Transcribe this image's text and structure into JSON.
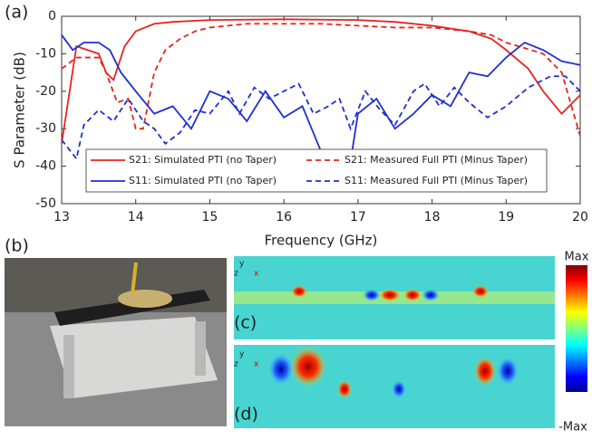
{
  "chart_data": {
    "type": "line",
    "panel_label": "(a)",
    "xlabel": "Frequency (GHz)",
    "ylabel": "S Parameter (dB)",
    "xlim": [
      13,
      20
    ],
    "ylim": [
      -50,
      0
    ],
    "xticks": [
      13,
      14,
      15,
      16,
      17,
      18,
      19,
      20
    ],
    "yticks": [
      0,
      -10,
      -20,
      -30,
      -40,
      -50
    ],
    "grid": false,
    "series": [
      {
        "name": "S21: Simulated PTI (no Taper)",
        "color": "#e8231f",
        "linestyle": "solid",
        "x": [
          13,
          13.2,
          13.5,
          13.6,
          13.7,
          13.85,
          14,
          14.25,
          14.5,
          15,
          16,
          17,
          17.5,
          18,
          18.5,
          18.8,
          19,
          19.3,
          19.5,
          19.75,
          20
        ],
        "values": [
          -34,
          -8,
          -10,
          -15,
          -17,
          -8,
          -4,
          -2,
          -1.5,
          -1,
          -0.8,
          -1,
          -1.5,
          -2.5,
          -4,
          -6,
          -9,
          -14,
          -20,
          -26,
          -21
        ]
      },
      {
        "name": "S21: Measured Full PTI (Minus Taper)",
        "color": "#e8231f",
        "linestyle": "dashed",
        "x": [
          13,
          13.2,
          13.5,
          13.6,
          13.75,
          13.9,
          14,
          14.1,
          14.25,
          14.4,
          14.6,
          14.8,
          15,
          15.5,
          16,
          16.5,
          17,
          17.5,
          18,
          18.5,
          18.8,
          19,
          19.5,
          19.75,
          20
        ],
        "values": [
          -14,
          -11,
          -11,
          -15,
          -23,
          -22,
          -30,
          -30,
          -15,
          -9,
          -6,
          -4,
          -3,
          -2,
          -2,
          -2,
          -2.5,
          -3,
          -3,
          -4,
          -5,
          -7,
          -10,
          -15,
          -32
        ]
      },
      {
        "name": "S11: Simulated PTI (no Taper)",
        "color": "#1f2fd0",
        "linestyle": "solid",
        "x": [
          13,
          13.15,
          13.3,
          13.5,
          13.65,
          13.8,
          14,
          14.25,
          14.5,
          14.75,
          15,
          15.25,
          15.5,
          15.75,
          16,
          16.25,
          16.5,
          16.7,
          16.85,
          17,
          17.25,
          17.5,
          17.75,
          18,
          18.25,
          18.5,
          18.75,
          19,
          19.25,
          19.5,
          19.75,
          20
        ],
        "values": [
          -5,
          -9,
          -7,
          -7,
          -9,
          -15,
          -20,
          -26,
          -24,
          -30,
          -20,
          -22,
          -28,
          -20,
          -27,
          -24,
          -36,
          -45,
          -45,
          -26,
          -22,
          -30,
          -26,
          -21,
          -24,
          -15,
          -16,
          -11,
          -7,
          -9,
          -12,
          -13
        ]
      },
      {
        "name": "S11: Measured Full PTI (Minus Taper)",
        "color": "#1f2fd0",
        "linestyle": "dashed",
        "x": [
          13,
          13.2,
          13.3,
          13.5,
          13.7,
          13.9,
          14.1,
          14.25,
          14.4,
          14.6,
          14.8,
          15,
          15.25,
          15.4,
          15.6,
          15.8,
          16,
          16.2,
          16.4,
          16.6,
          16.75,
          16.9,
          17.1,
          17.3,
          17.5,
          17.75,
          17.9,
          18.1,
          18.3,
          18.5,
          18.75,
          19,
          19.3,
          19.6,
          19.8,
          20
        ],
        "values": [
          -33,
          -38,
          -29,
          -25,
          -28,
          -22,
          -28,
          -30,
          -34,
          -31,
          -25,
          -26,
          -20,
          -26,
          -19,
          -22,
          -20,
          -18,
          -26,
          -24,
          -22,
          -30,
          -20,
          -25,
          -29,
          -20,
          -18,
          -24,
          -19,
          -23,
          -27,
          -24,
          -19,
          -16,
          -16,
          -20
        ]
      }
    ]
  },
  "panels": {
    "b": "(b)",
    "c": "(c)",
    "d": "(d)"
  },
  "glyphs": {
    "x": "x",
    "y": "y",
    "z": "z"
  },
  "colorbar": {
    "max": "Max",
    "min": "-Max"
  }
}
